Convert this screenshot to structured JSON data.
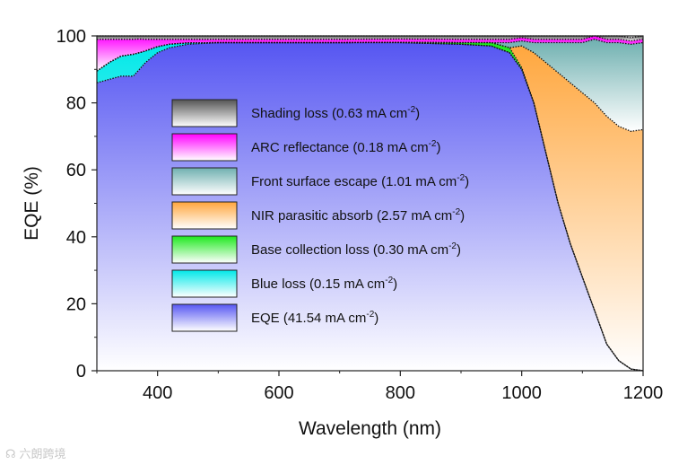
{
  "chart_data": {
    "type": "area",
    "stacked": true,
    "xlabel": "Wavelength (nm)",
    "ylabel": "EQE (%)",
    "xlim": [
      300,
      1200
    ],
    "ylim": [
      0,
      100
    ],
    "xticks": [
      400,
      600,
      800,
      1000,
      1200
    ],
    "yticks": [
      0,
      20,
      40,
      60,
      80,
      100
    ],
    "x": [
      300,
      320,
      340,
      360,
      370,
      380,
      400,
      420,
      450,
      500,
      600,
      700,
      800,
      900,
      950,
      980,
      1000,
      1020,
      1040,
      1060,
      1080,
      1100,
      1120,
      1140,
      1160,
      1180,
      1200
    ],
    "series": [
      {
        "name": "EQE",
        "legend": "EQE (41.54 mA cm",
        "color": "#5656f2",
        "values": [
          86,
          87,
          88,
          88,
          90,
          92,
          95,
          96.5,
          97.5,
          98,
          98,
          98,
          98,
          97.5,
          97,
          95,
          90,
          80,
          65,
          50,
          38,
          28,
          18,
          8,
          3,
          0.5,
          0
        ]
      },
      {
        "name": "Blue loss",
        "legend": "Blue loss (0.15 mA cm",
        "color": "#00e8e8",
        "values": [
          3.5,
          5,
          6,
          6.5,
          5,
          3.5,
          1.8,
          1,
          0.4,
          0,
          0,
          0,
          0,
          0,
          0,
          0,
          0,
          0,
          0,
          0,
          0,
          0,
          0,
          0,
          0,
          0,
          0
        ]
      },
      {
        "name": "Base collection loss",
        "legend": "Base collection loss (0.30 mA cm",
        "color": "#1ee81e",
        "values": [
          0,
          0,
          0,
          0,
          0,
          0,
          0,
          0,
          0,
          0,
          0,
          0,
          0.1,
          0.5,
          1,
          1.5,
          0.5,
          0,
          0,
          0,
          0,
          0,
          0,
          0,
          0,
          0,
          0
        ]
      },
      {
        "name": "NIR parasitic absorb",
        "legend": "NIR parasitic absorb (2.57 mA cm",
        "color": "#ffa63c",
        "values": [
          0,
          0,
          0,
          0,
          0,
          0,
          0,
          0,
          0,
          0,
          0,
          0,
          0,
          0,
          0,
          0,
          6.5,
          15,
          27,
          39,
          48,
          55,
          62,
          68,
          70,
          71,
          72
        ]
      },
      {
        "name": "Front surface escape",
        "legend": "Front surface escape (1.01 mA cm",
        "color": "#6fb0b0",
        "values": [
          0,
          0,
          0,
          0,
          0,
          0,
          0,
          0,
          0,
          0,
          0,
          0,
          0,
          0,
          0,
          1.5,
          1.5,
          3,
          6,
          9,
          12,
          15,
          19,
          22,
          25,
          26,
          26
        ]
      },
      {
        "name": "ARC reflectance",
        "legend": "ARC reflectance (0.18 mA cm",
        "color": "#ff00ff",
        "values": [
          9.5,
          7,
          5,
          4.5,
          4.1,
          3.5,
          2.2,
          1.5,
          1.1,
          1,
          1,
          1,
          1,
          1,
          1,
          1,
          1,
          1,
          1,
          1,
          1,
          1,
          1,
          1,
          1,
          1,
          1
        ]
      },
      {
        "name": "Shading loss",
        "legend": "Shading loss (0.63 mA cm",
        "color": "#555555",
        "values": [
          1,
          1,
          1,
          1,
          0.9,
          1,
          1,
          1,
          1,
          1,
          1,
          1,
          1,
          1,
          1,
          1,
          1,
          1,
          1,
          1,
          1,
          1,
          1,
          1,
          1,
          1,
          1
        ]
      }
    ],
    "legend_order": [
      "Shading loss",
      "ARC reflectance",
      "Front surface escape",
      "NIR parasitic absorb",
      "Base collection loss",
      "Blue loss",
      "EQE"
    ],
    "legend_unit_suffix": ")",
    "legend_superscript": "-2",
    "legend_position": "center-left"
  },
  "watermark": {
    "icon": "watermark-logo-icon",
    "text": "六朗跨境"
  }
}
